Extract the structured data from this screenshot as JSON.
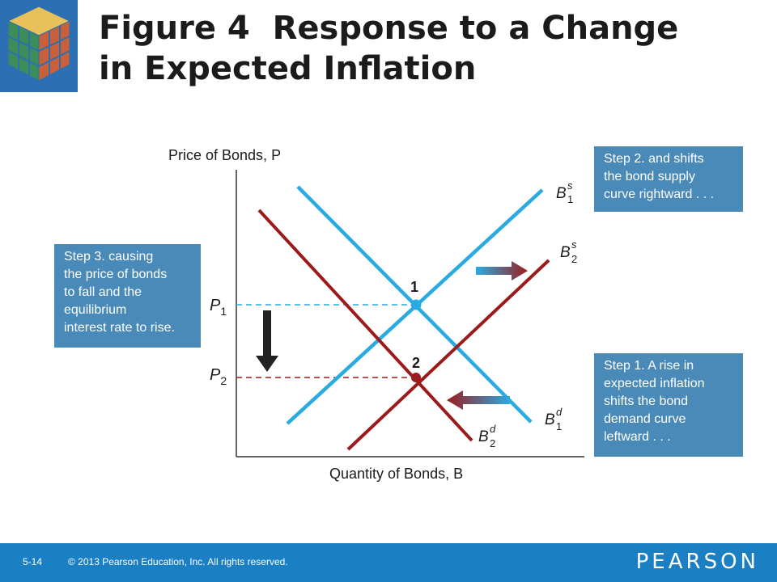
{
  "slide": {
    "title_lines": [
      "Figure 4  Response to a Change",
      "in Expected Inflation"
    ],
    "number": "5-14",
    "copyright": "© 2013 Pearson Education, Inc. All rights reserved.",
    "brand": "PEARSON"
  },
  "diagram": {
    "y_axis_label": "Price of Bonds, P",
    "x_axis_label": "Quantity of Bonds, B",
    "price_labels": {
      "p1": {
        "base": "P",
        "sub": "1"
      },
      "p2": {
        "base": "P",
        "sub": "2"
      }
    },
    "equilibria": {
      "point1": "1",
      "point2": "2"
    },
    "curves": {
      "bs1": {
        "base": "B",
        "sup": "s",
        "sub": "1"
      },
      "bs2": {
        "base": "B",
        "sup": "s",
        "sub": "2"
      },
      "bd1": {
        "base": "B",
        "sup": "d",
        "sub": "1"
      },
      "bd2": {
        "base": "B",
        "sup": "d",
        "sub": "2"
      }
    },
    "callouts": {
      "step1": [
        "Step 1. A rise in",
        "expected inflation",
        "shifts the bond",
        "demand curve",
        "leftward . . ."
      ],
      "step2": [
        "Step 2. and shifts",
        "the bond supply",
        "curve rightward . . ."
      ],
      "step3": [
        "Step 3. causing",
        "the price of bonds",
        "to fall and the",
        "equilibrium",
        "interest rate to rise."
      ]
    },
    "colors": {
      "original_curves": "#29abe2",
      "shifted_curves": "#9b1b1b",
      "callout_bg": "#4a8ab8",
      "footer_bg": "#1b7fc4"
    }
  }
}
